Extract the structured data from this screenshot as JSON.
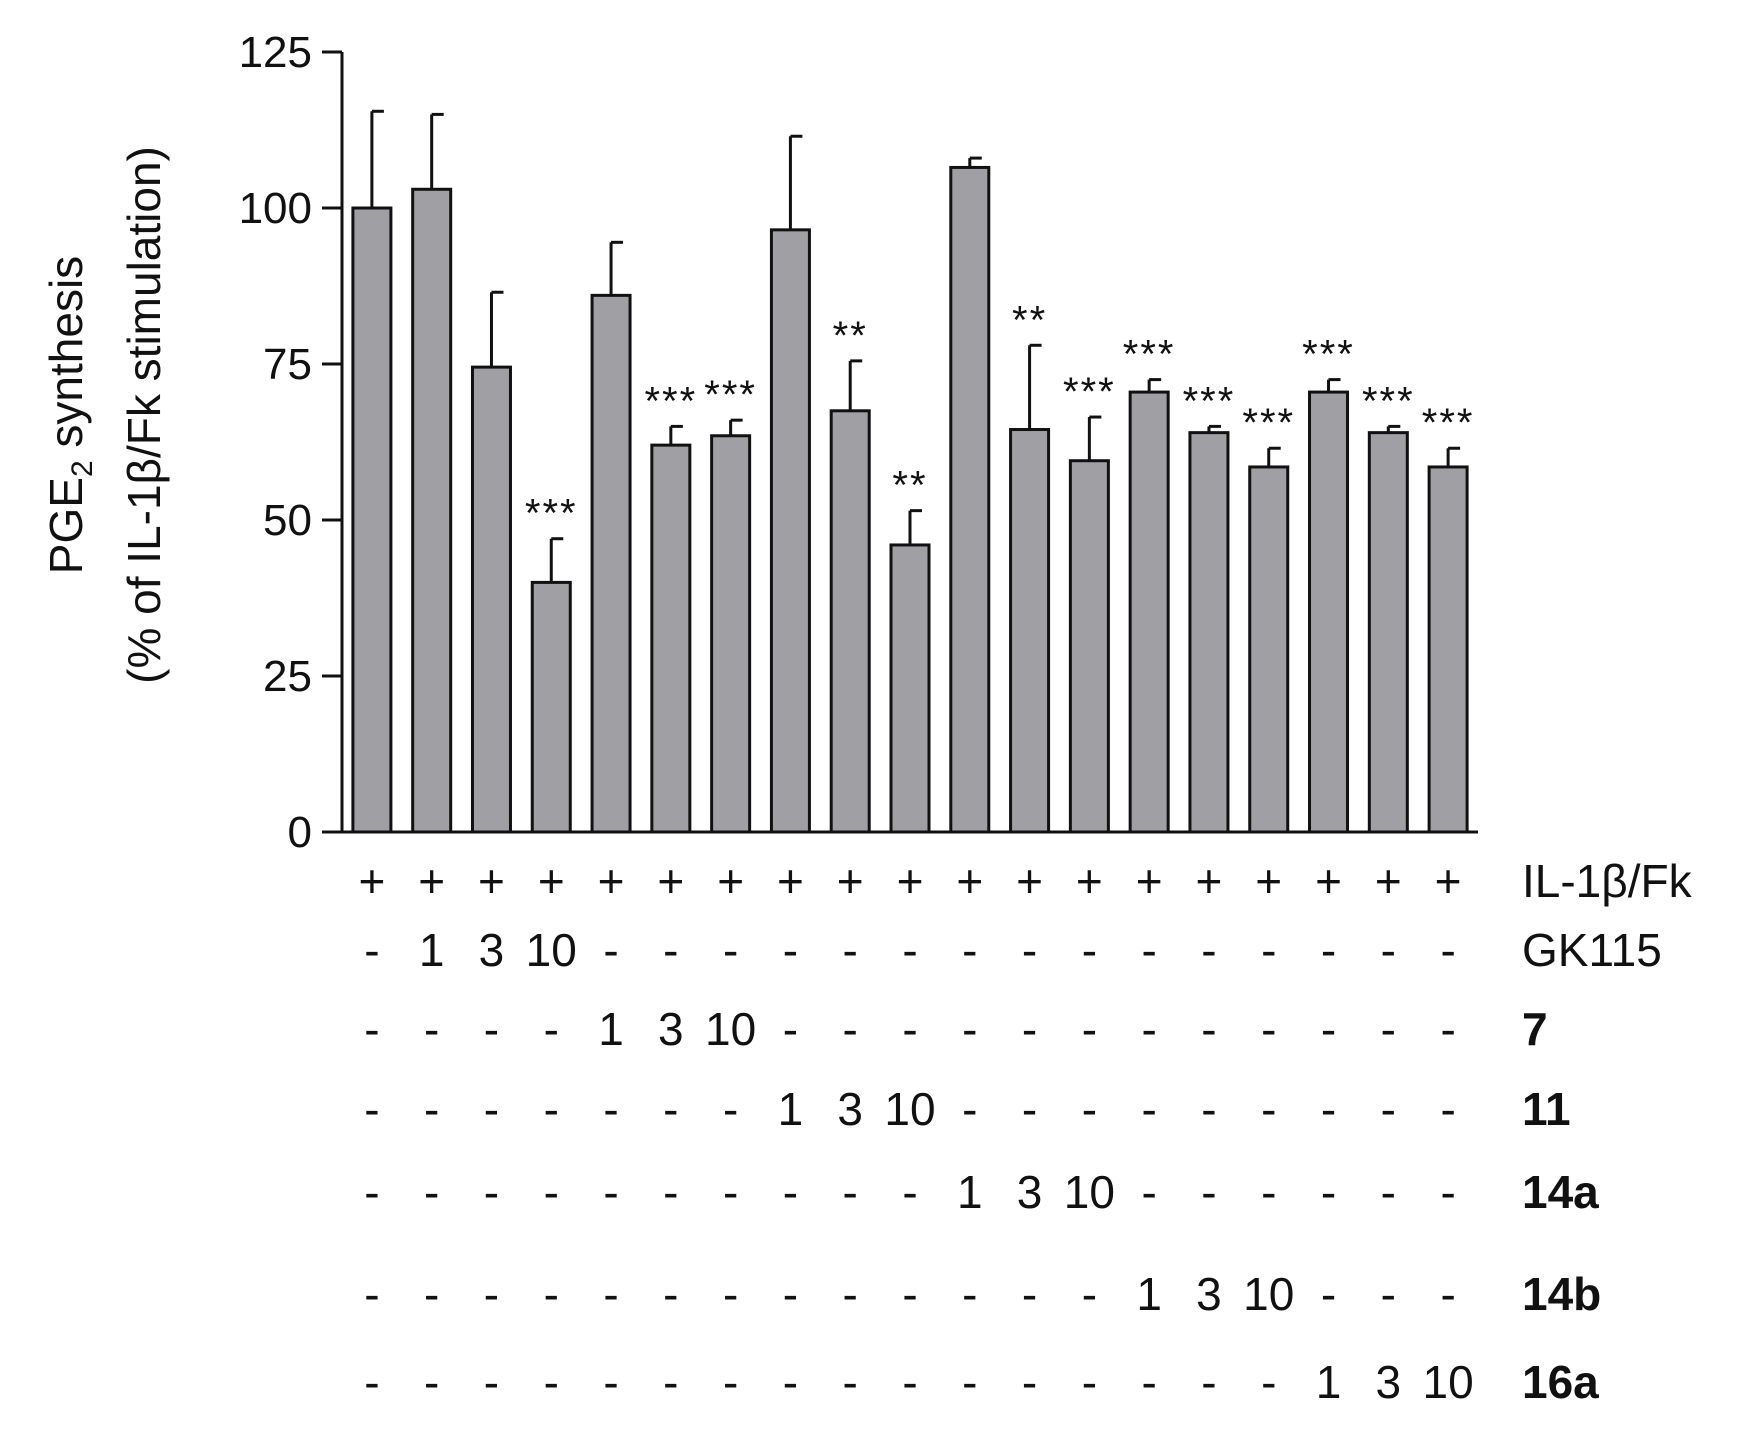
{
  "chart_data": {
    "type": "bar",
    "ylabel_line1": "PGE",
    "ylabel_sub": "2",
    "ylabel_line1_rest": " synthesis",
    "ylabel_line2": "(% of IL-1β/Fk stimulation)",
    "ylim": [
      0,
      125
    ],
    "yticks": [
      0,
      25,
      50,
      75,
      100,
      125
    ],
    "bar_color": "#a0a0a4",
    "grid": false,
    "values": [
      100,
      103,
      74.5,
      40,
      86,
      62,
      63.5,
      96.5,
      67.5,
      46,
      106.5,
      64.5,
      59.5,
      70.5,
      64,
      58.5,
      70.5,
      64,
      58.5
    ],
    "errors": [
      15.5,
      12,
      12,
      7,
      8.5,
      3,
      2.5,
      15,
      8,
      5.5,
      1.5,
      13.5,
      7,
      2,
      1,
      3,
      2,
      1,
      3
    ],
    "significance": [
      "",
      "",
      "",
      "***",
      "",
      "***",
      "***",
      "",
      "**",
      "**",
      "",
      "**",
      "***",
      "***",
      "***",
      "***",
      "***",
      "***",
      "***"
    ],
    "treatment_rows": [
      {
        "label": "IL-1β/Fk",
        "bold": false,
        "cells": [
          "+",
          "+",
          "+",
          "+",
          "+",
          "+",
          "+",
          "+",
          "+",
          "+",
          "+",
          "+",
          "+",
          "+",
          "+",
          "+",
          "+",
          "+",
          "+"
        ]
      },
      {
        "label": "GK115",
        "bold": false,
        "cells": [
          "-",
          "1",
          "3",
          "10",
          "-",
          "-",
          "-",
          "-",
          "-",
          "-",
          "-",
          "-",
          "-",
          "-",
          "-",
          "-",
          "-",
          "-",
          "-"
        ]
      },
      {
        "label": "7",
        "bold": true,
        "cells": [
          "-",
          "-",
          "-",
          "-",
          "1",
          "3",
          "10",
          "-",
          "-",
          "-",
          "-",
          "-",
          "-",
          "-",
          "-",
          "-",
          "-",
          "-",
          "-"
        ]
      },
      {
        "label": "11",
        "bold": true,
        "cells": [
          "-",
          "-",
          "-",
          "-",
          "-",
          "-",
          "-",
          "1",
          "3",
          "10",
          "-",
          "-",
          "-",
          "-",
          "-",
          "-",
          "-",
          "-",
          "-"
        ]
      },
      {
        "label": "14a",
        "bold": true,
        "cells": [
          "-",
          "-",
          "-",
          "-",
          "-",
          "-",
          "-",
          "-",
          "-",
          "-",
          "1",
          "3",
          "10",
          "-",
          "-",
          "-",
          "-",
          "-",
          "-"
        ]
      },
      {
        "label": "14b",
        "bold": true,
        "cells": [
          "-",
          "-",
          "-",
          "-",
          "-",
          "-",
          "-",
          "-",
          "-",
          "-",
          "-",
          "-",
          "-",
          "1",
          "3",
          "10",
          "-",
          "-",
          "-"
        ]
      },
      {
        "label": "16a",
        "bold": true,
        "cells": [
          "-",
          "-",
          "-",
          "-",
          "-",
          "-",
          "-",
          "-",
          "-",
          "-",
          "-",
          "-",
          "-",
          "-",
          "-",
          "-",
          "1",
          "3",
          "10"
        ]
      }
    ]
  }
}
